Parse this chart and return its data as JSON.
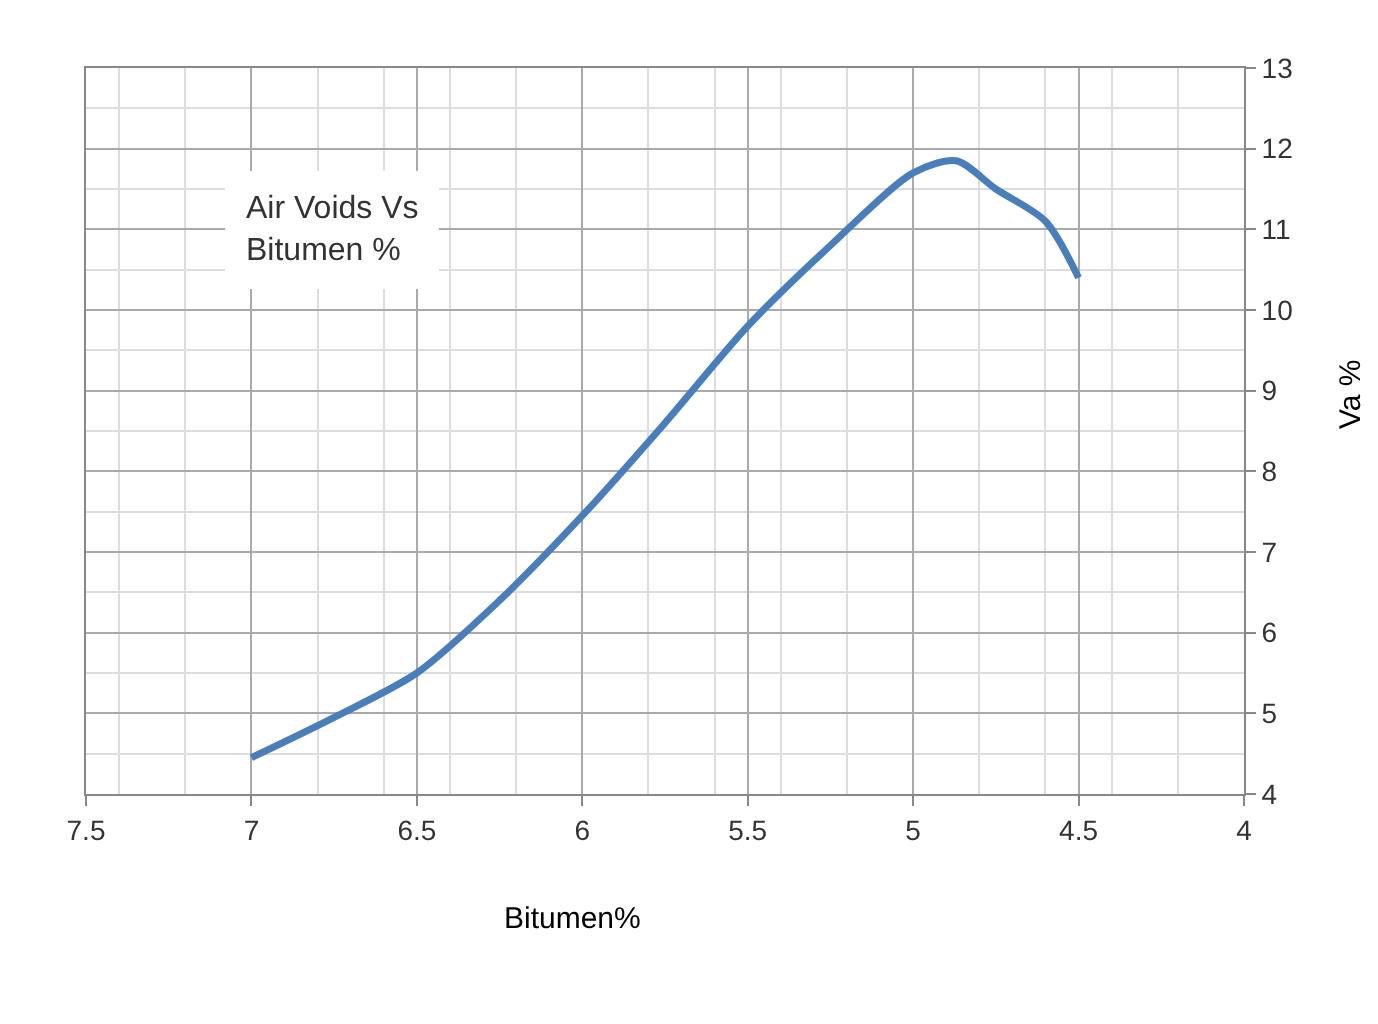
{
  "chart_data": {
    "type": "line",
    "xlabel": "Bitumen%",
    "ylabel": "Va %",
    "annotations": [
      "Air Voids Vs\nBitumen %"
    ],
    "x": [
      7,
      6.75,
      6.5,
      6.25,
      6,
      5.75,
      5.5,
      5.25,
      5,
      4.87,
      4.75,
      4.6,
      4.5
    ],
    "series": [
      {
        "color": "#4a7ebb",
        "values": [
          4.45,
          4.95,
          5.5,
          6.4,
          7.45,
          8.6,
          9.8,
          10.8,
          11.7,
          11.85,
          11.5,
          11.1,
          10.4
        ]
      }
    ],
    "xlim": [
      7.5,
      4
    ],
    "xticks": [
      7.5,
      7,
      6.5,
      6,
      5.5,
      5,
      4.5,
      4
    ],
    "ylim": [
      4,
      13
    ],
    "yticks": [
      4,
      5,
      6,
      7,
      8,
      9,
      10,
      11,
      12,
      13
    ],
    "grid": true,
    "legend": false,
    "marker": "none",
    "line_style": "solid"
  }
}
